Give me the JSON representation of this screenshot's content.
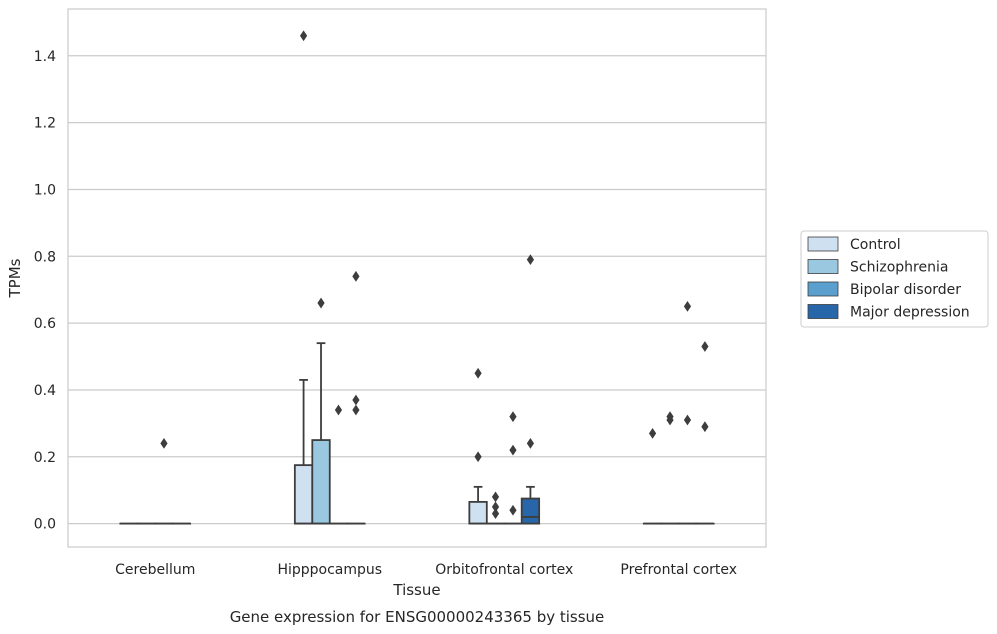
{
  "chart_data": {
    "type": "box",
    "title": "",
    "caption": "Gene expression for ENSG00000243365 by tissue",
    "xlabel": "Tissue",
    "ylabel": "TPMs",
    "ylim": [
      -0.07,
      1.54
    ],
    "yticks": [
      "0.0",
      "0.2",
      "0.4",
      "0.6",
      "0.8",
      "1.0",
      "1.2",
      "1.4"
    ],
    "grid": "horizontal",
    "legend_position": "right",
    "categories": [
      "Cerebellum",
      "Hipppocampus",
      "Orbitofrontal cortex",
      "Prefrontal cortex"
    ],
    "series": [
      {
        "name": "Control",
        "color": "#cfe0f1",
        "boxes": [
          {
            "category": "Cerebellum",
            "whislo": 0,
            "q1": 0,
            "med": 0,
            "q3": 0,
            "whishi": 0,
            "fliers": []
          },
          {
            "category": "Hipppocampus",
            "whislo": 0,
            "q1": 0,
            "med": 0,
            "q3": 0.175,
            "whishi": 0.43,
            "fliers": [
              1.46
            ]
          },
          {
            "category": "Orbitofrontal cortex",
            "whislo": 0,
            "q1": 0,
            "med": 0,
            "q3": 0.065,
            "whishi": 0.11,
            "fliers": [
              0.2,
              0.45
            ]
          },
          {
            "category": "Prefrontal cortex",
            "whislo": 0,
            "q1": 0,
            "med": 0,
            "q3": 0,
            "whishi": 0,
            "fliers": [
              0.27
            ]
          }
        ]
      },
      {
        "name": "Schizophrenia",
        "color": "#9ac8e0",
        "boxes": [
          {
            "category": "Cerebellum",
            "whislo": 0,
            "q1": 0,
            "med": 0,
            "q3": 0,
            "whishi": 0,
            "fliers": []
          },
          {
            "category": "Hipppocampus",
            "whislo": 0,
            "q1": 0,
            "med": 0,
            "q3": 0.25,
            "whishi": 0.54,
            "fliers": [
              0.66
            ]
          },
          {
            "category": "Orbitofrontal cortex",
            "whislo": 0,
            "q1": 0,
            "med": 0,
            "q3": 0,
            "whishi": 0,
            "fliers": [
              0.03,
              0.05,
              0.08
            ]
          },
          {
            "category": "Prefrontal cortex",
            "whislo": 0,
            "q1": 0,
            "med": 0,
            "q3": 0,
            "whishi": 0,
            "fliers": [
              0.31,
              0.32
            ]
          }
        ]
      },
      {
        "name": "Bipolar disorder",
        "color": "#5a9fcd",
        "boxes": [
          {
            "category": "Cerebellum",
            "whislo": 0,
            "q1": 0,
            "med": 0,
            "q3": 0,
            "whishi": 0,
            "fliers": [
              0.24
            ]
          },
          {
            "category": "Hipppocampus",
            "whislo": 0,
            "q1": 0,
            "med": 0,
            "q3": 0,
            "whishi": 0,
            "fliers": [
              0.34
            ]
          },
          {
            "category": "Orbitofrontal cortex",
            "whislo": 0,
            "q1": 0,
            "med": 0,
            "q3": 0,
            "whishi": 0,
            "fliers": [
              0.04,
              0.22,
              0.32
            ]
          },
          {
            "category": "Prefrontal cortex",
            "whislo": 0,
            "q1": 0,
            "med": 0,
            "q3": 0,
            "whishi": 0,
            "fliers": [
              0.31,
              0.65
            ]
          }
        ]
      },
      {
        "name": "Major depression",
        "color": "#2767a9",
        "boxes": [
          {
            "category": "Cerebellum",
            "whislo": 0,
            "q1": 0,
            "med": 0,
            "q3": 0,
            "whishi": 0,
            "fliers": []
          },
          {
            "category": "Hipppocampus",
            "whislo": 0,
            "q1": 0,
            "med": 0,
            "q3": 0,
            "whishi": 0,
            "fliers": [
              0.34,
              0.37,
              0.74
            ]
          },
          {
            "category": "Orbitofrontal cortex",
            "whislo": 0,
            "q1": 0,
            "med": 0.02,
            "q3": 0.075,
            "whishi": 0.11,
            "fliers": [
              0.24,
              0.79
            ]
          },
          {
            "category": "Prefrontal cortex",
            "whislo": 0,
            "q1": 0,
            "med": 0,
            "q3": 0,
            "whishi": 0,
            "fliers": [
              0.29,
              0.53
            ]
          }
        ]
      }
    ]
  }
}
